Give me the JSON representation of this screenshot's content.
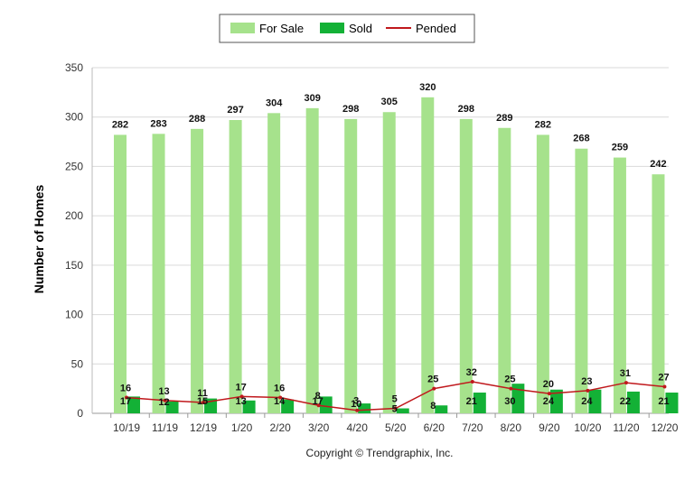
{
  "chart_data": {
    "type": "bar",
    "categories": [
      "10/19",
      "11/19",
      "12/19",
      "1/20",
      "2/20",
      "3/20",
      "4/20",
      "5/20",
      "6/20",
      "7/20",
      "8/20",
      "9/20",
      "10/20",
      "11/20",
      "12/20"
    ],
    "series": [
      {
        "name": "For Sale",
        "kind": "bar",
        "color": "#a6e28c",
        "values": [
          282,
          283,
          288,
          297,
          304,
          309,
          298,
          305,
          320,
          298,
          289,
          282,
          268,
          259,
          242
        ]
      },
      {
        "name": "Sold",
        "kind": "bar",
        "color": "#13b136",
        "values": [
          17,
          12,
          15,
          13,
          14,
          17,
          10,
          5,
          8,
          21,
          30,
          24,
          24,
          22,
          21
        ]
      },
      {
        "name": "Pended",
        "kind": "line",
        "color": "#c0181c",
        "values": [
          16,
          13,
          11,
          17,
          16,
          8,
          3,
          5,
          25,
          32,
          25,
          20,
          23,
          31,
          27
        ]
      }
    ],
    "xlabel": "",
    "ylabel": "Number of Homes",
    "ylim": [
      0,
      350
    ],
    "yticks": [
      0,
      50,
      100,
      150,
      200,
      250,
      300,
      350
    ],
    "grid": true,
    "legend_position": "top-center",
    "copyright": "Copyright © Trendgraphix, Inc."
  }
}
